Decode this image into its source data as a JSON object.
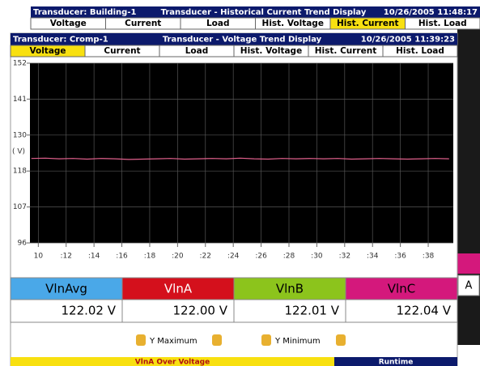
{
  "back_window": {
    "header": {
      "left": "Transducer: Building-1",
      "title": "Transducer - Historical Current Trend Display",
      "datetime": "10/26/2005 11:48:17"
    },
    "tabs": [
      "Voltage",
      "Current",
      "Load",
      "Hist. Voltage",
      "Hist. Current",
      "Hist. Load"
    ],
    "active_tab": 4,
    "side_button": "A"
  },
  "front_window": {
    "header": {
      "left": "Transducer: Cromp-1",
      "title": "Transducer - Voltage Trend Display",
      "datetime": "10/26/2005 11:39:23"
    },
    "tabs": [
      "Voltage",
      "Current",
      "Load",
      "Hist. Voltage",
      "Hist. Current",
      "Hist. Load"
    ],
    "active_tab": 0
  },
  "chart_data": {
    "type": "line",
    "y_label": "( V)",
    "ylim": [
      96,
      152
    ],
    "yticks": [
      96,
      {
        "value": 107.2,
        "label": "107"
      },
      {
        "value": 118.4,
        "label": "118"
      },
      {
        "value": 129.6,
        "label": "130"
      },
      {
        "value": 140.8,
        "label": "141"
      },
      152
    ],
    "xlim": [
      9.4,
      39.8
    ],
    "xticks": [
      10,
      {
        "value": 12,
        "label": ":12"
      },
      {
        "value": 14,
        "label": ":14"
      },
      {
        "value": 16,
        "label": ":16"
      },
      {
        "value": 18,
        "label": ":18"
      },
      {
        "value": 20,
        "label": ":20"
      },
      {
        "value": 22,
        "label": ":22"
      },
      {
        "value": 24,
        "label": ":24"
      },
      {
        "value": 26,
        "label": ":26"
      },
      {
        "value": 28,
        "label": ":28"
      },
      {
        "value": 30,
        "label": ":30"
      },
      {
        "value": 32,
        "label": ":32"
      },
      {
        "value": 34,
        "label": ":34"
      },
      {
        "value": 36,
        "label": ":36"
      },
      {
        "value": 38,
        "label": ":38"
      }
    ],
    "grid": true,
    "series": [
      {
        "name": "VlnA",
        "color": "#e0608c",
        "x": [
          9.5,
          10.5,
          11.5,
          12.5,
          13.5,
          14.5,
          15.5,
          16.5,
          17.5,
          18.5,
          19.5,
          20.5,
          21.5,
          22.5,
          23.5,
          24.5,
          25.5,
          26.5,
          27.5,
          28.5,
          29.5,
          30.5,
          31.5,
          32.5,
          33.5,
          34.5,
          35.5,
          36.5,
          37.5,
          38.5,
          39.5
        ],
        "values": [
          122.3,
          122.4,
          122.2,
          122.3,
          122.1,
          122.3,
          122.2,
          122.0,
          122.1,
          122.2,
          122.3,
          122.1,
          122.2,
          122.3,
          122.2,
          122.4,
          122.2,
          122.1,
          122.3,
          122.2,
          122.3,
          122.2,
          122.3,
          122.1,
          122.2,
          122.3,
          122.2,
          122.1,
          122.2,
          122.3,
          122.2
        ]
      }
    ]
  },
  "readings": [
    {
      "name": "VlnAvg",
      "value": "122.02  V",
      "color": "#4aa8e8"
    },
    {
      "name": "VlnA",
      "value": "122.00  V",
      "color": "#d4101c"
    },
    {
      "name": "VlnB",
      "value": "122.01  V",
      "color": "#8cc41c"
    },
    {
      "name": "VlnC",
      "value": "122.04  V",
      "color": "#d4187c"
    }
  ],
  "buttons": [
    "Y Maximum",
    "Y Minimum"
  ],
  "status": {
    "alarm": "VlnA Over Voltage",
    "mode": "Runtime"
  }
}
